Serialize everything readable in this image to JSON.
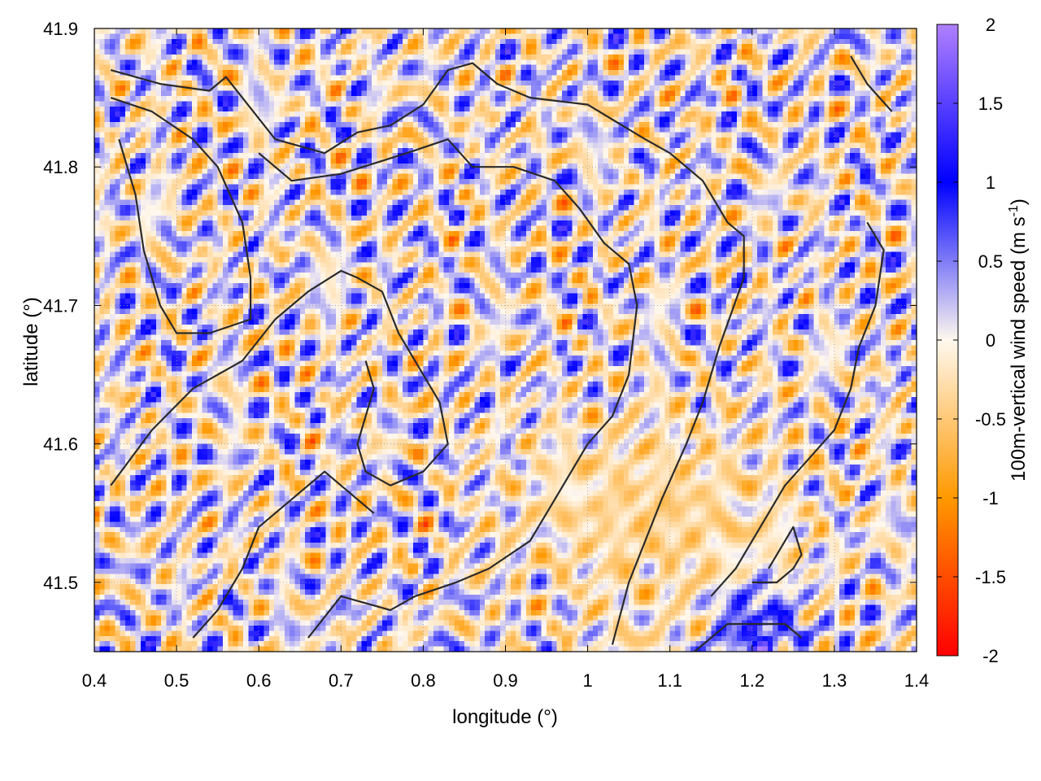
{
  "chart_data": {
    "type": "heatmap",
    "title": "",
    "xlabel": "longitude (°)",
    "ylabel": "latitude (°)",
    "xlim": [
      0.4,
      1.4
    ],
    "ylim": [
      41.45,
      41.9
    ],
    "x_ticks": [
      0.4,
      0.5,
      0.6,
      0.7,
      0.8,
      0.9,
      1.0,
      1.1,
      1.2,
      1.3,
      1.4
    ],
    "x_tick_labels": [
      "0.4",
      "0.5",
      "0.6",
      "0.7",
      "0.8",
      "0.9",
      "1",
      "1.1",
      "1.2",
      "1.3",
      "1.4"
    ],
    "y_ticks": [
      41.5,
      41.6,
      41.7,
      41.8,
      41.9
    ],
    "y_tick_labels": [
      "41.5",
      "41.6",
      "41.7",
      "41.8",
      "41.9"
    ],
    "grid": true,
    "colorbar": {
      "label_main": "100m-vertical wind speed (m s",
      "label_sup": "-1",
      "label_end": ")",
      "range": [
        -2,
        2
      ],
      "ticks": [
        2,
        1.5,
        1,
        0.5,
        0,
        -0.5,
        -1,
        -1.5,
        -2
      ],
      "tick_labels": [
        "2",
        "1.5",
        "1",
        "0.5",
        "0",
        "-0.5",
        "-1",
        "-1.5",
        "-2"
      ],
      "colors": [
        "#ff0000",
        "#ff9900",
        "#fff8ee",
        "#0000ff",
        "#b080ff"
      ]
    },
    "field_description": "vertical wind speed field: alternating updraft (blue) and downdraft (orange) streaks over complex terrain",
    "contours": [
      [
        [
          0.42,
          41.87
        ],
        [
          0.48,
          41.86
        ],
        [
          0.54,
          41.855
        ],
        [
          0.56,
          41.865
        ],
        [
          0.58,
          41.85
        ],
        [
          0.62,
          41.82
        ],
        [
          0.65,
          41.815
        ],
        [
          0.68,
          41.81
        ],
        [
          0.72,
          41.825
        ],
        [
          0.76,
          41.83
        ],
        [
          0.8,
          41.845
        ],
        [
          0.83,
          41.87
        ],
        [
          0.86,
          41.875
        ],
        [
          0.89,
          41.86
        ],
        [
          0.93,
          41.85
        ],
        [
          1.0,
          41.845
        ],
        [
          1.07,
          41.82
        ],
        [
          1.1,
          41.81
        ],
        [
          1.14,
          41.79
        ],
        [
          1.17,
          41.76
        ],
        [
          1.19,
          41.75
        ],
        [
          1.19,
          41.72
        ],
        [
          1.16,
          41.67
        ],
        [
          1.14,
          41.63
        ],
        [
          1.12,
          41.6
        ],
        [
          1.09,
          41.56
        ],
        [
          1.05,
          41.5
        ],
        [
          1.03,
          41.455
        ]
      ],
      [
        [
          0.42,
          41.85
        ],
        [
          0.47,
          41.84
        ],
        [
          0.52,
          41.82
        ],
        [
          0.55,
          41.8
        ],
        [
          0.58,
          41.76
        ],
        [
          0.59,
          41.72
        ],
        [
          0.59,
          41.69
        ],
        [
          0.54,
          41.68
        ],
        [
          0.5,
          41.68
        ],
        [
          0.48,
          41.7
        ],
        [
          0.46,
          41.74
        ],
        [
          0.45,
          41.78
        ],
        [
          0.43,
          41.82
        ]
      ],
      [
        [
          0.6,
          41.81
        ],
        [
          0.64,
          41.79
        ],
        [
          0.7,
          41.795
        ],
        [
          0.78,
          41.81
        ],
        [
          0.83,
          41.82
        ],
        [
          0.86,
          41.8
        ],
        [
          0.91,
          41.8
        ],
        [
          0.96,
          41.79
        ],
        [
          0.99,
          41.77
        ],
        [
          1.02,
          41.745
        ],
        [
          1.05,
          41.73
        ],
        [
          1.06,
          41.7
        ],
        [
          1.05,
          41.65
        ],
        [
          1.03,
          41.62
        ],
        [
          1.0,
          41.6
        ],
        [
          0.96,
          41.56
        ],
        [
          0.93,
          41.53
        ],
        [
          0.88,
          41.51
        ],
        [
          0.84,
          41.5
        ],
        [
          0.79,
          41.49
        ],
        [
          0.76,
          41.48
        ],
        [
          0.7,
          41.49
        ],
        [
          0.66,
          41.46
        ]
      ],
      [
        [
          0.42,
          41.57
        ],
        [
          0.47,
          41.61
        ],
        [
          0.52,
          41.64
        ],
        [
          0.58,
          41.66
        ],
        [
          0.62,
          41.69
        ],
        [
          0.66,
          41.71
        ],
        [
          0.7,
          41.725
        ],
        [
          0.72,
          41.72
        ],
        [
          0.75,
          41.71
        ],
        [
          0.77,
          41.68
        ],
        [
          0.79,
          41.66
        ],
        [
          0.82,
          41.63
        ],
        [
          0.83,
          41.6
        ],
        [
          0.8,
          41.58
        ],
        [
          0.76,
          41.57
        ],
        [
          0.73,
          41.58
        ],
        [
          0.72,
          41.6
        ],
        [
          0.73,
          41.62
        ],
        [
          0.74,
          41.64
        ],
        [
          0.73,
          41.66
        ]
      ],
      [
        [
          0.52,
          41.46
        ],
        [
          0.55,
          41.48
        ],
        [
          0.58,
          41.51
        ],
        [
          0.6,
          41.54
        ],
        [
          0.64,
          41.56
        ],
        [
          0.68,
          41.58
        ],
        [
          0.72,
          41.56
        ],
        [
          0.74,
          41.55
        ]
      ],
      [
        [
          1.13,
          41.45
        ],
        [
          1.17,
          41.47
        ],
        [
          1.2,
          41.47
        ],
        [
          1.24,
          41.47
        ],
        [
          1.26,
          41.46
        ]
      ],
      [
        [
          1.32,
          41.88
        ],
        [
          1.34,
          41.86
        ],
        [
          1.37,
          41.84
        ]
      ],
      [
        [
          1.34,
          41.76
        ],
        [
          1.36,
          41.74
        ],
        [
          1.35,
          41.7
        ],
        [
          1.33,
          41.67
        ],
        [
          1.32,
          41.64
        ],
        [
          1.3,
          41.61
        ],
        [
          1.27,
          41.59
        ],
        [
          1.24,
          41.57
        ],
        [
          1.22,
          41.55
        ],
        [
          1.2,
          41.53
        ],
        [
          1.18,
          41.51
        ],
        [
          1.15,
          41.49
        ]
      ],
      [
        [
          1.2,
          41.5
        ],
        [
          1.23,
          41.5
        ],
        [
          1.25,
          41.51
        ],
        [
          1.26,
          41.52
        ],
        [
          1.25,
          41.54
        ],
        [
          1.22,
          41.51
        ]
      ]
    ]
  }
}
